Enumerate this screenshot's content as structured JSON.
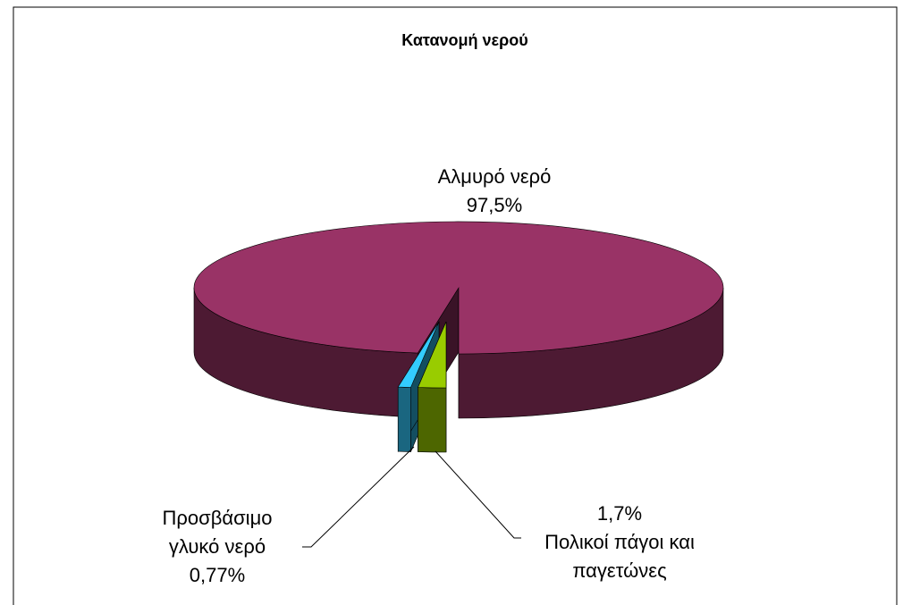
{
  "chart_data": {
    "type": "pie",
    "title": "Κατανομή νερού",
    "categories": [
      "Αλμυρό νερό",
      "Πολικοί πάγοι και παγετώνες",
      "Προσβάσιμο γλυκό νερό"
    ],
    "values": [
      97.5,
      1.7,
      0.77
    ],
    "value_labels": [
      "97,5%",
      "1,7%",
      "0,77%"
    ],
    "colors": [
      "#993366",
      "#99cc00",
      "#33ccff"
    ]
  }
}
